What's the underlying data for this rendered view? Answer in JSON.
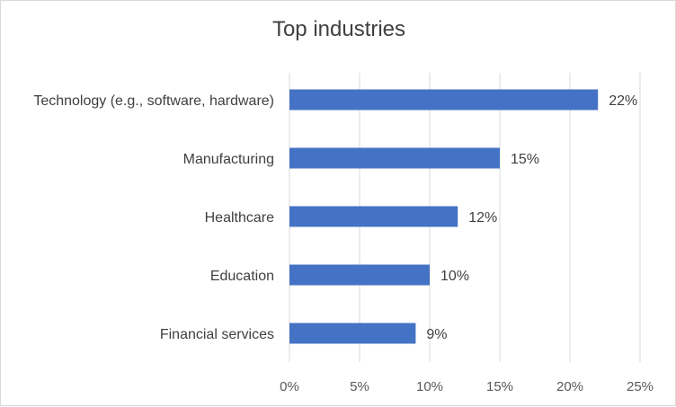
{
  "chart_data": {
    "type": "bar",
    "orientation": "horizontal",
    "title": "Top industries",
    "xlabel": "",
    "ylabel": "",
    "categories": [
      "Technology (e.g., software, hardware)",
      "Manufacturing",
      "Healthcare",
      "Education",
      "Financial services"
    ],
    "values": [
      22,
      15,
      12,
      10,
      9
    ],
    "value_labels": [
      "22%",
      "15%",
      "12%",
      "10%",
      "9%"
    ],
    "xlim": [
      0,
      25
    ],
    "x_ticks": [
      0,
      5,
      10,
      15,
      20,
      25
    ],
    "x_tick_labels": [
      "0%",
      "5%",
      "10%",
      "15%",
      "20%",
      "25%"
    ],
    "grid": "vertical",
    "legend": "none",
    "bar_color": "#4472c4"
  }
}
